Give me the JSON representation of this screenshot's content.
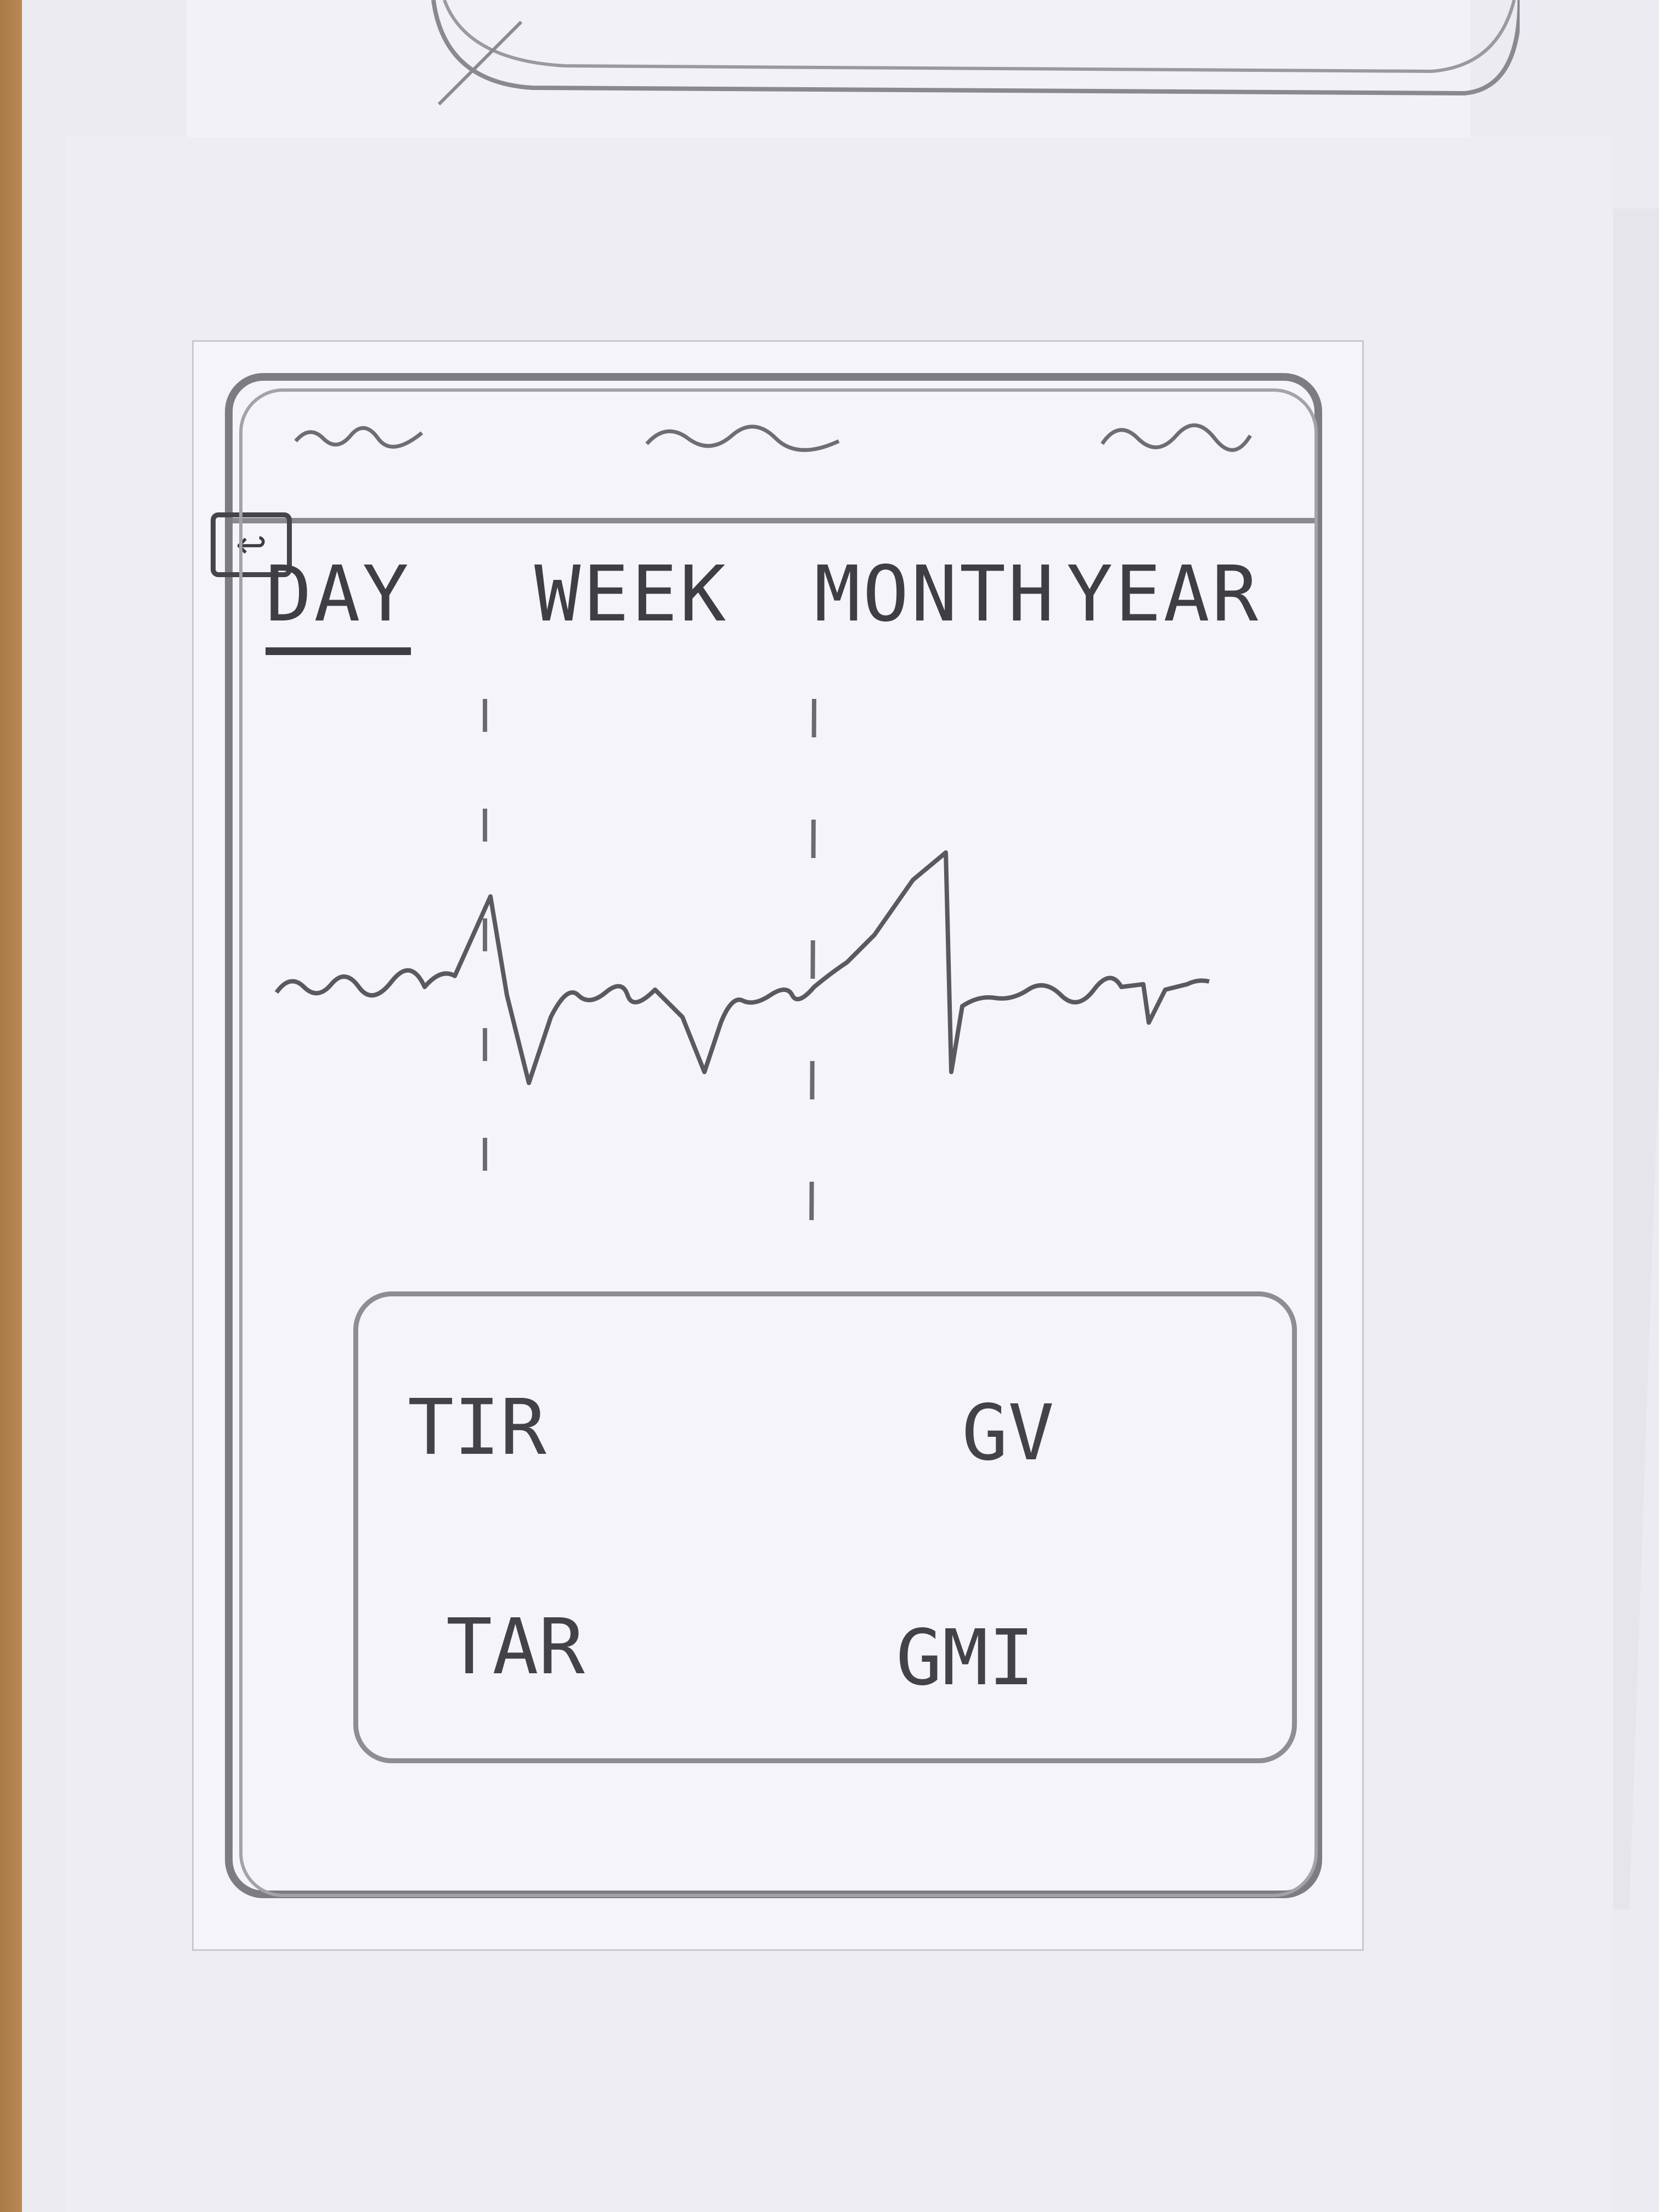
{
  "tabs": {
    "day": "DAY",
    "week": "WEEK",
    "month": "MONTH",
    "year": "YEAR",
    "active": "day"
  },
  "metrics": {
    "tir": "TIR",
    "gv": "GV",
    "tar": "TAR",
    "gmi": "GMI"
  },
  "icons": {
    "back": "back-arrow-icon"
  },
  "colors": {
    "pencil": "#3f3e42",
    "paper": "#f5f4f8"
  }
}
